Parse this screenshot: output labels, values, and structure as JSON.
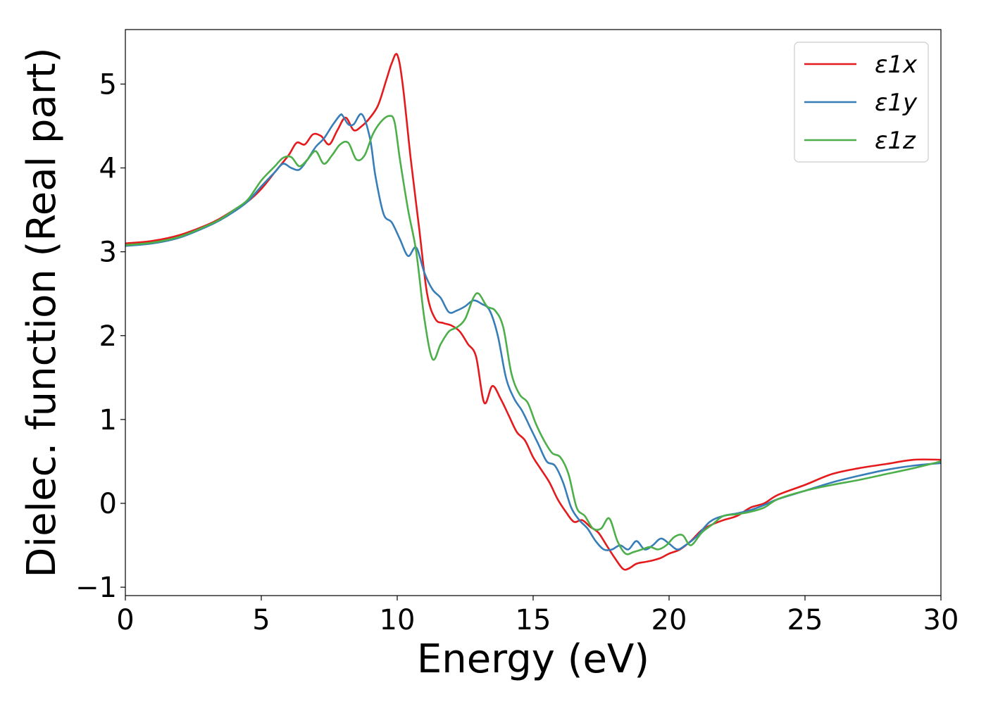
{
  "chart_data": {
    "type": "line",
    "title": "",
    "xlabel": "Energy (eV)",
    "ylabel": "Dielec. function (Real part)",
    "xlim": [
      0,
      30
    ],
    "ylim": [
      -1.1,
      5.65
    ],
    "xticks": [
      0,
      5,
      10,
      15,
      20,
      25,
      30
    ],
    "xtick_labels": [
      "0",
      "5",
      "10",
      "15",
      "20",
      "25",
      "30"
    ],
    "yticks": [
      -1,
      0,
      1,
      2,
      3,
      4,
      5
    ],
    "ytick_labels": [
      "−1",
      "0",
      "1",
      "2",
      "3",
      "4",
      "5"
    ],
    "grid": false,
    "legend_position": "top-right",
    "series": [
      {
        "name": "ε1x",
        "color": "#e41a1c",
        "x": [
          0,
          1,
          2,
          3,
          3.5,
          4,
          4.5,
          5,
          5.5,
          6,
          6.3,
          6.6,
          6.9,
          7.2,
          7.5,
          7.8,
          8.1,
          8.4,
          8.7,
          9.0,
          9.3,
          9.6,
          9.8,
          10.0,
          10.2,
          10.5,
          10.8,
          11.1,
          11.4,
          11.7,
          12.0,
          12.3,
          12.6,
          12.9,
          13.2,
          13.5,
          13.8,
          14.1,
          14.4,
          14.7,
          15.0,
          15.3,
          15.6,
          15.9,
          16.2,
          16.5,
          16.8,
          17.1,
          17.4,
          17.7,
          18.0,
          18.3,
          18.5,
          18.8,
          19.1,
          19.4,
          19.7,
          20.0,
          20.4,
          20.8,
          21.2,
          21.6,
          22.0,
          22.5,
          23.0,
          23.5,
          24.0,
          25.0,
          26.0,
          27.0,
          28.0,
          29.0,
          30.0
        ],
        "y": [
          3.1,
          3.13,
          3.2,
          3.32,
          3.4,
          3.5,
          3.6,
          3.75,
          3.95,
          4.15,
          4.3,
          4.28,
          4.4,
          4.38,
          4.28,
          4.45,
          4.6,
          4.45,
          4.5,
          4.6,
          4.75,
          5.05,
          5.25,
          5.35,
          5.0,
          4.1,
          3.3,
          2.5,
          2.2,
          2.15,
          2.12,
          2.05,
          1.9,
          1.75,
          1.2,
          1.4,
          1.25,
          1.05,
          0.85,
          0.75,
          0.55,
          0.4,
          0.25,
          0.05,
          -0.1,
          -0.22,
          -0.2,
          -0.28,
          -0.35,
          -0.5,
          -0.65,
          -0.78,
          -0.78,
          -0.72,
          -0.7,
          -0.68,
          -0.65,
          -0.6,
          -0.55,
          -0.45,
          -0.32,
          -0.25,
          -0.2,
          -0.15,
          -0.05,
          0.0,
          0.1,
          0.22,
          0.35,
          0.42,
          0.47,
          0.52,
          0.52
        ]
      },
      {
        "name": "ε1y",
        "color": "#377eb8",
        "x": [
          0,
          1,
          2,
          3,
          3.5,
          4,
          4.5,
          5,
          5.5,
          5.8,
          6.1,
          6.4,
          6.7,
          7.0,
          7.3,
          7.6,
          7.9,
          8.0,
          8.2,
          8.4,
          8.7,
          9.0,
          9.2,
          9.5,
          9.8,
          10.1,
          10.4,
          10.7,
          11.0,
          11.3,
          11.6,
          11.9,
          12.2,
          12.5,
          12.8,
          13.1,
          13.4,
          13.7,
          14.0,
          14.3,
          14.6,
          14.9,
          15.2,
          15.5,
          15.8,
          16.1,
          16.4,
          16.7,
          17.0,
          17.3,
          17.6,
          17.9,
          18.2,
          18.5,
          18.8,
          19.1,
          19.4,
          19.7,
          20.0,
          20.3,
          20.6,
          21.0,
          21.5,
          22.0,
          22.5,
          23.0,
          23.5,
          24.0,
          25.0,
          26.0,
          27.0,
          28.0,
          29.0,
          30.0
        ],
        "y": [
          3.07,
          3.1,
          3.17,
          3.3,
          3.38,
          3.48,
          3.6,
          3.78,
          3.95,
          4.05,
          4.0,
          3.98,
          4.1,
          4.25,
          4.35,
          4.5,
          4.63,
          4.62,
          4.52,
          4.52,
          4.64,
          4.35,
          3.9,
          3.45,
          3.35,
          3.15,
          2.95,
          3.05,
          2.75,
          2.55,
          2.45,
          2.28,
          2.3,
          2.35,
          2.42,
          2.38,
          2.3,
          2.0,
          1.5,
          1.25,
          1.1,
          0.9,
          0.7,
          0.5,
          0.45,
          0.25,
          -0.05,
          -0.2,
          -0.3,
          -0.45,
          -0.55,
          -0.55,
          -0.5,
          -0.55,
          -0.45,
          -0.55,
          -0.5,
          -0.42,
          -0.48,
          -0.55,
          -0.5,
          -0.4,
          -0.22,
          -0.15,
          -0.12,
          -0.08,
          -0.02,
          0.05,
          0.15,
          0.25,
          0.33,
          0.4,
          0.45,
          0.48
        ]
      },
      {
        "name": "ε1z",
        "color": "#4daf4a",
        "x": [
          0,
          1,
          2,
          3,
          3.5,
          4,
          4.5,
          5,
          5.5,
          5.8,
          6.1,
          6.4,
          6.7,
          7.0,
          7.3,
          7.6,
          7.9,
          8.2,
          8.5,
          8.8,
          9.1,
          9.4,
          9.7,
          9.9,
          10.1,
          10.4,
          10.7,
          11.0,
          11.3,
          11.6,
          11.9,
          12.2,
          12.5,
          12.8,
          13.0,
          13.3,
          13.6,
          13.9,
          14.2,
          14.5,
          14.8,
          15.1,
          15.4,
          15.7,
          16.0,
          16.3,
          16.6,
          16.9,
          17.2,
          17.5,
          17.8,
          18.1,
          18.4,
          18.7,
          19.0,
          19.3,
          19.6,
          19.9,
          20.2,
          20.5,
          20.8,
          21.2,
          21.6,
          22.0,
          22.5,
          23.0,
          23.5,
          24.0,
          25.0,
          26.0,
          27.0,
          28.0,
          29.0,
          30.0
        ],
        "y": [
          3.08,
          3.11,
          3.18,
          3.31,
          3.39,
          3.5,
          3.62,
          3.85,
          4.02,
          4.12,
          4.13,
          4.02,
          4.1,
          4.2,
          4.05,
          4.15,
          4.28,
          4.3,
          4.1,
          4.15,
          4.4,
          4.55,
          4.62,
          4.55,
          4.1,
          3.5,
          3.0,
          2.2,
          1.72,
          1.9,
          2.05,
          2.1,
          2.2,
          2.45,
          2.5,
          2.35,
          2.3,
          2.1,
          1.55,
          1.3,
          1.2,
          0.95,
          0.75,
          0.6,
          0.55,
          0.35,
          -0.05,
          -0.15,
          -0.3,
          -0.3,
          -0.18,
          -0.45,
          -0.6,
          -0.58,
          -0.55,
          -0.52,
          -0.55,
          -0.5,
          -0.4,
          -0.38,
          -0.5,
          -0.35,
          -0.25,
          -0.15,
          -0.13,
          -0.1,
          -0.05,
          0.05,
          0.15,
          0.22,
          0.28,
          0.35,
          0.42,
          0.5
        ]
      }
    ]
  }
}
